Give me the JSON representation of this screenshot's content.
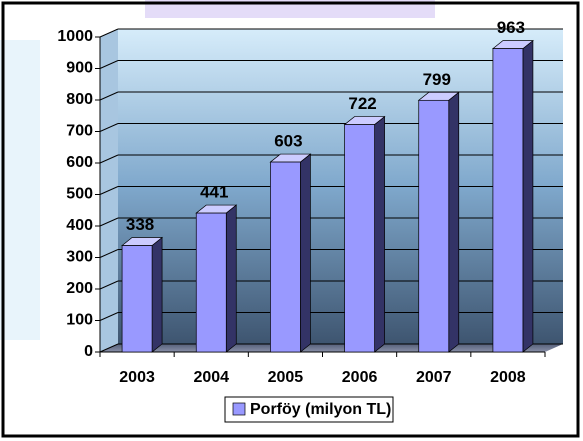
{
  "chart_data": {
    "type": "bar",
    "categories": [
      "2003",
      "2004",
      "2005",
      "2006",
      "2007",
      "2008"
    ],
    "series": [
      {
        "name": "Porföy (milyon TL)",
        "color": "#9999ff",
        "values": [
          338,
          441,
          603,
          722,
          799,
          963
        ]
      }
    ],
    "ylim": [
      0,
      1000
    ],
    "yticks": [
      0,
      100,
      200,
      300,
      400,
      500,
      600,
      700,
      800,
      900,
      1000
    ],
    "grid": true
  }
}
